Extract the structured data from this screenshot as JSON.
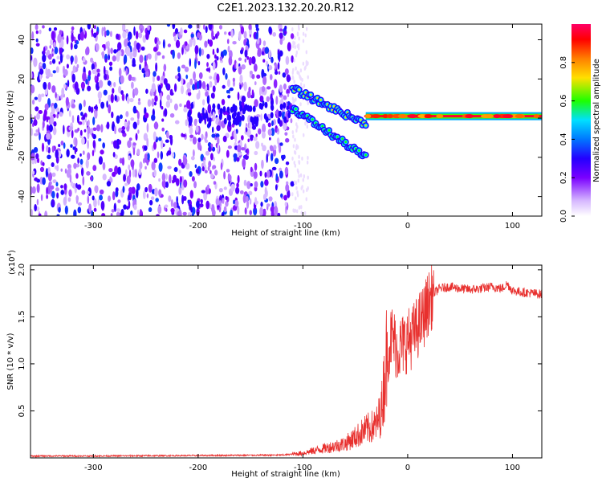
{
  "title": "C2E1.2023.132.20.20.R12",
  "colors": {
    "snr_line": "#e8302e",
    "colormap": [
      "#ffffff",
      "#d6b8ff",
      "#7a00ff",
      "#2400ff",
      "#0077ff",
      "#00e0ff",
      "#1dff00",
      "#ffe000",
      "#ff8000",
      "#ff0000",
      "#ff0066"
    ]
  },
  "chart_data": [
    {
      "type": "heatmap",
      "xlabel": "Height of straight line (km)",
      "ylabel": "Frequency (Hz)",
      "xlim": [
        -360,
        128
      ],
      "ylim": [
        -50,
        48
      ],
      "xticks": [
        -300,
        -200,
        -100,
        0,
        100
      ],
      "yticks": [
        -40,
        -20,
        0,
        20,
        40
      ],
      "colorbar": {
        "label": "Normalized spectral amplitude",
        "range": [
          0,
          1
        ],
        "ticks": [
          "0.0",
          "0.2",
          "0.4",
          "0.6",
          "0.8"
        ]
      },
      "features": [
        {
          "x_range": [
            -360,
            -110
          ],
          "freq_range": [
            -50,
            48
          ],
          "amplitude": 0.15,
          "kind": "broadband noise"
        },
        {
          "x_range": [
            -110,
            -40
          ],
          "freq_start": 15,
          "freq_end": -3,
          "amplitude": 0.7,
          "kind": "upper descending branch"
        },
        {
          "x_range": [
            -110,
            -40
          ],
          "freq_start": 5,
          "freq_end": -20,
          "amplitude": 0.6,
          "kind": "lower descending branch"
        },
        {
          "x_range": [
            -40,
            128
          ],
          "freq": 1,
          "amplitude": 0.95,
          "kind": "steady carrier line"
        }
      ]
    },
    {
      "type": "line",
      "xlabel": "Height of straight line (km)",
      "ylabel": "SNR (10 * v/v)",
      "y_multiplier": "(x10^4)",
      "xlim": [
        -360,
        128
      ],
      "ylim": [
        0,
        2.05
      ],
      "xticks": [
        -300,
        -200,
        -100,
        0,
        100
      ],
      "yticks": [
        "0.5",
        "1.0",
        "1.5",
        "2.0"
      ],
      "series": [
        {
          "x": [
            -360,
            -300,
            -200,
            -120,
            -100,
            -80,
            -60,
            -50,
            -40,
            -30,
            -25,
            -20,
            -15,
            -10,
            -5,
            0,
            5,
            10,
            15,
            20,
            25,
            30,
            40,
            50,
            60,
            70,
            80,
            90,
            95,
            100,
            110,
            120,
            128
          ],
          "y": [
            0.02,
            0.02,
            0.025,
            0.03,
            0.05,
            0.1,
            0.15,
            0.22,
            0.3,
            0.35,
            0.5,
            1.1,
            1.3,
            1.15,
            1.2,
            1.25,
            1.3,
            1.4,
            1.5,
            1.65,
            1.75,
            1.8,
            1.82,
            1.8,
            1.79,
            1.8,
            1.82,
            1.8,
            1.85,
            1.78,
            1.76,
            1.75,
            1.74
          ]
        }
      ]
    }
  ]
}
